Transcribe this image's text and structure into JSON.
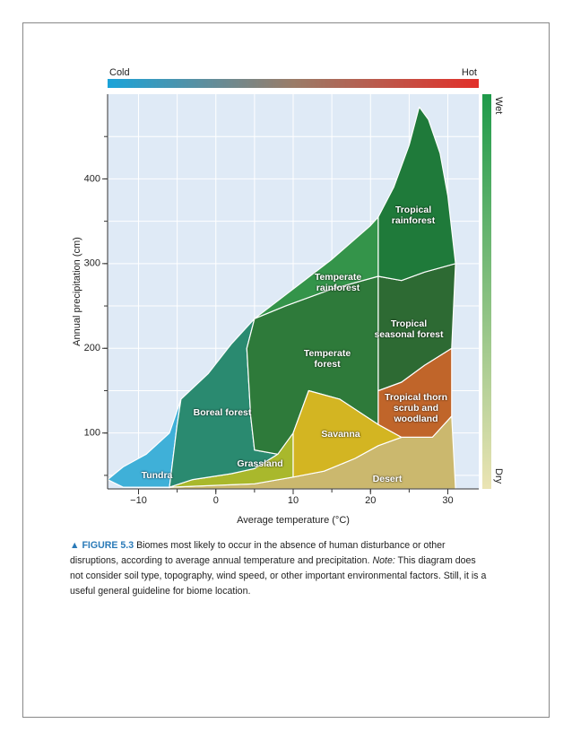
{
  "chart_data": {
    "type": "biome",
    "xlabel": "Average temperature (°C)",
    "ylabel": "Annual precipitation (cm)",
    "xlim": [
      -14,
      34
    ],
    "ylim": [
      34,
      500
    ],
    "xticks": [
      {
        "value": -10,
        "label": "−10"
      },
      0,
      10,
      20,
      30
    ],
    "yticks": [
      100,
      200,
      300,
      400
    ],
    "xgrid": [
      -10,
      -5,
      0,
      5,
      10,
      15,
      20,
      25,
      30
    ],
    "ygrid": [
      50,
      100,
      150,
      200,
      250,
      300,
      350,
      400,
      450
    ],
    "temperature_scale": {
      "left": "Cold",
      "right": "Hot"
    },
    "moisture_scale": {
      "top": "Wet",
      "bottom": "Dry"
    },
    "regions": [
      {
        "name": "Tundra",
        "color": "#3fb0d8",
        "points": [
          [
            -14,
            45
          ],
          [
            -12,
            60
          ],
          [
            -9,
            75
          ],
          [
            -6,
            100
          ],
          [
            -4.5,
            140
          ],
          [
            -5,
            110
          ],
          [
            -6,
            36
          ],
          [
            -12,
            36
          ]
        ]
      },
      {
        "name": "Desert",
        "color": "#cbb86e",
        "points": [
          [
            -6,
            34
          ],
          [
            -6,
            36
          ],
          [
            5,
            40
          ],
          [
            10,
            48
          ],
          [
            14,
            55
          ],
          [
            18,
            70
          ],
          [
            21,
            85
          ],
          [
            24,
            95
          ],
          [
            28,
            95
          ],
          [
            30.5,
            120
          ],
          [
            31,
            34
          ]
        ]
      },
      {
        "name": "Grassland",
        "color": "#a9b82c",
        "points": [
          [
            -6,
            36
          ],
          [
            -3,
            45
          ],
          [
            2,
            52
          ],
          [
            5,
            58
          ],
          [
            8,
            75
          ],
          [
            10,
            100
          ],
          [
            10,
            48
          ],
          [
            5,
            40
          ]
        ]
      },
      {
        "name": "Boreal forest",
        "color": "#2a8a70",
        "points": [
          [
            -6,
            36
          ],
          [
            -5,
            110
          ],
          [
            -4.5,
            140
          ],
          [
            -1,
            170
          ],
          [
            2,
            205
          ],
          [
            5,
            235
          ],
          [
            4,
            200
          ],
          [
            4.5,
            120
          ],
          [
            5,
            80
          ],
          [
            8,
            75
          ],
          [
            5,
            58
          ],
          [
            2,
            52
          ],
          [
            -3,
            45
          ]
        ]
      },
      {
        "name": "Temperate forest",
        "color": "#2e7a3a",
        "points": [
          [
            5,
            235
          ],
          [
            9,
            250
          ],
          [
            15,
            270
          ],
          [
            21,
            285
          ],
          [
            21,
            110
          ],
          [
            16,
            140
          ],
          [
            12,
            150
          ],
          [
            10,
            100
          ],
          [
            8,
            75
          ],
          [
            5,
            80
          ],
          [
            4.5,
            120
          ],
          [
            4,
            200
          ]
        ]
      },
      {
        "name": "Temperate rainforest",
        "color": "#34944a",
        "points": [
          [
            5,
            235
          ],
          [
            10,
            270
          ],
          [
            15,
            305
          ],
          [
            20,
            345
          ],
          [
            21,
            355
          ],
          [
            21,
            285
          ],
          [
            15,
            270
          ],
          [
            9,
            250
          ]
        ]
      },
      {
        "name": "Savanna",
        "color": "#d3b522",
        "points": [
          [
            10,
            48
          ],
          [
            10,
            100
          ],
          [
            12,
            150
          ],
          [
            16,
            140
          ],
          [
            21,
            110
          ],
          [
            24,
            95
          ],
          [
            21,
            85
          ],
          [
            18,
            70
          ],
          [
            14,
            55
          ]
        ]
      },
      {
        "name": "Tropical thorn scrub and woodland",
        "color": "#c0652a",
        "points": [
          [
            21,
            110
          ],
          [
            21,
            150
          ],
          [
            24,
            160
          ],
          [
            27,
            180
          ],
          [
            30.5,
            200
          ],
          [
            30.5,
            120
          ],
          [
            28,
            95
          ],
          [
            24,
            95
          ]
        ]
      },
      {
        "name": "Tropical seasonal forest",
        "color": "#2d6a33",
        "points": [
          [
            21,
            150
          ],
          [
            21,
            285
          ],
          [
            24,
            280
          ],
          [
            27,
            290
          ],
          [
            31,
            300
          ],
          [
            30.5,
            200
          ],
          [
            27,
            180
          ],
          [
            24,
            160
          ]
        ]
      },
      {
        "name": "Tropical rainforest",
        "color": "#1f7a3a",
        "points": [
          [
            21,
            355
          ],
          [
            23,
            390
          ],
          [
            25,
            440
          ],
          [
            26.3,
            485
          ],
          [
            27.5,
            470
          ],
          [
            29,
            430
          ],
          [
            30,
            380
          ],
          [
            31,
            300
          ],
          [
            27,
            290
          ],
          [
            24,
            280
          ],
          [
            21,
            285
          ]
        ]
      }
    ]
  },
  "caption": {
    "figure_label": "FIGURE 5.3",
    "text": "Biomes most likely to occur in the absence of human disturbance or other disruptions, according to average annual temperature and precipitation.",
    "note_label": "Note:",
    "note": "This diagram does not consider soil type, topography, wind speed, or other important environmental factors. Still, it is a useful general guideline for biome location."
  }
}
